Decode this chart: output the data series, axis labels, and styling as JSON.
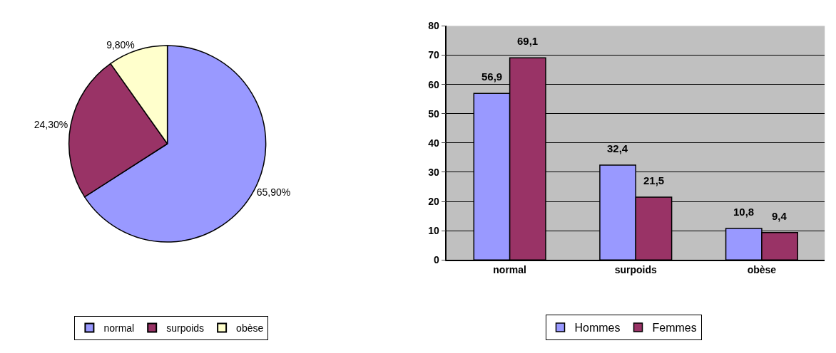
{
  "chart_data": [
    {
      "type": "pie",
      "categories": [
        "normal",
        "surpoids",
        "obèse"
      ],
      "values": [
        65.9,
        24.3,
        9.8
      ],
      "colors": [
        "#9999ff",
        "#993366",
        "#ffffcc"
      ],
      "value_labels": [
        "65,90%",
        "24,30%",
        "9,80%"
      ],
      "legend": "bottom"
    },
    {
      "type": "bar",
      "categories": [
        "normal",
        "surpoids",
        "obèse"
      ],
      "series": [
        {
          "name": "Hommes",
          "color": "#9999ff",
          "values": [
            56.9,
            32.4,
            10.8
          ],
          "value_labels": [
            "56,9",
            "32,4",
            "10,8"
          ]
        },
        {
          "name": "Femmes",
          "color": "#993366",
          "values": [
            69.1,
            21.5,
            9.4
          ],
          "value_labels": [
            "69,1",
            "21,5",
            "9,4"
          ]
        }
      ],
      "ylim": [
        0,
        80
      ],
      "yticks": [
        0,
        10,
        20,
        30,
        40,
        50,
        60,
        70,
        80
      ],
      "grid": "y",
      "legend": "bottom"
    }
  ]
}
